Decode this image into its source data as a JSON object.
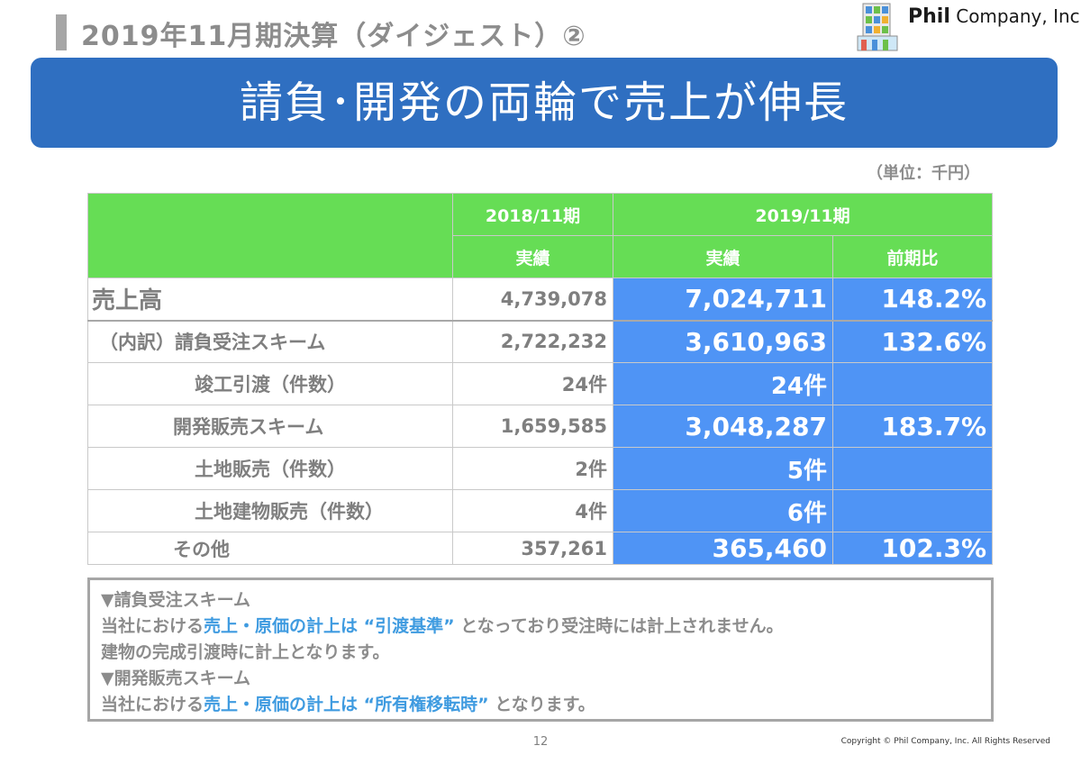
{
  "header": {
    "title": "2019年11月期決算（ダイジェスト）②",
    "logo_brand": "Phil",
    "logo_rest": " Company, Inc."
  },
  "banner": {
    "text": "請負･開発の両輪で売上が伸長"
  },
  "unit": "（単位：千円）",
  "table": {
    "col_prev_period": "2018/11期",
    "col_cur_period": "2019/11期",
    "sub_prev": "実績",
    "sub_cur": "実績",
    "sub_ratio": "前期比",
    "rows": [
      {
        "label": "売上高",
        "prev": "4,739,078",
        "cur": "7,024,711",
        "ratio": "148.2%"
      },
      {
        "label": "（内訳）請負受注スキーム",
        "prev": "2,722,232",
        "cur": "3,610,963",
        "ratio": "132.6%"
      },
      {
        "label": "竣工引渡（件数）",
        "prev": "24件",
        "cur": "24件",
        "ratio": ""
      },
      {
        "label": "開発販売スキーム",
        "prev": "1,659,585",
        "cur": "3,048,287",
        "ratio": "183.7%"
      },
      {
        "label": "土地販売（件数）",
        "prev": "2件",
        "cur": "5件",
        "ratio": ""
      },
      {
        "label": "土地建物販売（件数）",
        "prev": "4件",
        "cur": "6件",
        "ratio": ""
      },
      {
        "label": "その他",
        "prev": "357,261",
        "cur": "365,460",
        "ratio": "102.3%"
      }
    ]
  },
  "notes": {
    "h1": "▼請負受注スキーム",
    "l1a": "当社における",
    "l1b": "売上・原価の計上は “引渡基準”",
    "l1c": " となっており受注時には計上されません。",
    "l2": "建物の完成引渡時に計上となります。",
    "h2": "▼開発販売スキーム",
    "l3a": "当社における",
    "l3b": "売上・原価の計上は “所有権移転時”",
    "l3c": " となります。"
  },
  "footer": {
    "page": "12",
    "copyright": "Copyright © Phil Company, Inc.  All Rights Reserved"
  }
}
